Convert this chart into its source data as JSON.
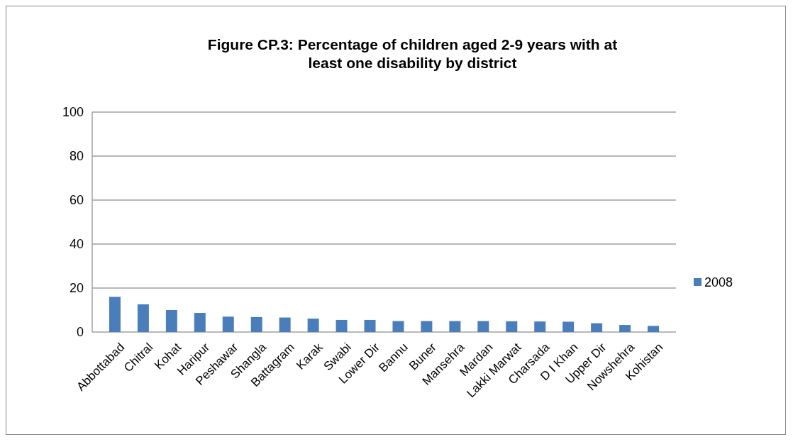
{
  "chart_data": {
    "type": "bar",
    "title": "Figure CP.3: Percentage of children aged 2-9 years with at least one disability by district",
    "categories": [
      "Abbottabad",
      "Chitral",
      "Kohat",
      "Haripur",
      "Peshawar",
      "Shangla",
      "Battagram",
      "Karak",
      "Swabi",
      "Lower Dir",
      "Bannu",
      "Buner",
      "Mansehra",
      "Mardan",
      "Lakki Marwat",
      "Charsada",
      "D I Khan",
      "Upper Dir",
      "Nowshehra",
      "Kohistan"
    ],
    "series": [
      {
        "name": "2008",
        "color": "#4a7ebb",
        "values": [
          16,
          12.6,
          10,
          8.7,
          7,
          6.8,
          6.6,
          6.1,
          5.5,
          5.5,
          5,
          5,
          5,
          5,
          4.9,
          4.8,
          4.7,
          4,
          3.2,
          2.8
        ]
      }
    ],
    "ylim": [
      0,
      100
    ],
    "yticks": [
      0,
      20,
      40,
      60,
      80,
      100
    ],
    "grid": "y",
    "legend": "right"
  }
}
